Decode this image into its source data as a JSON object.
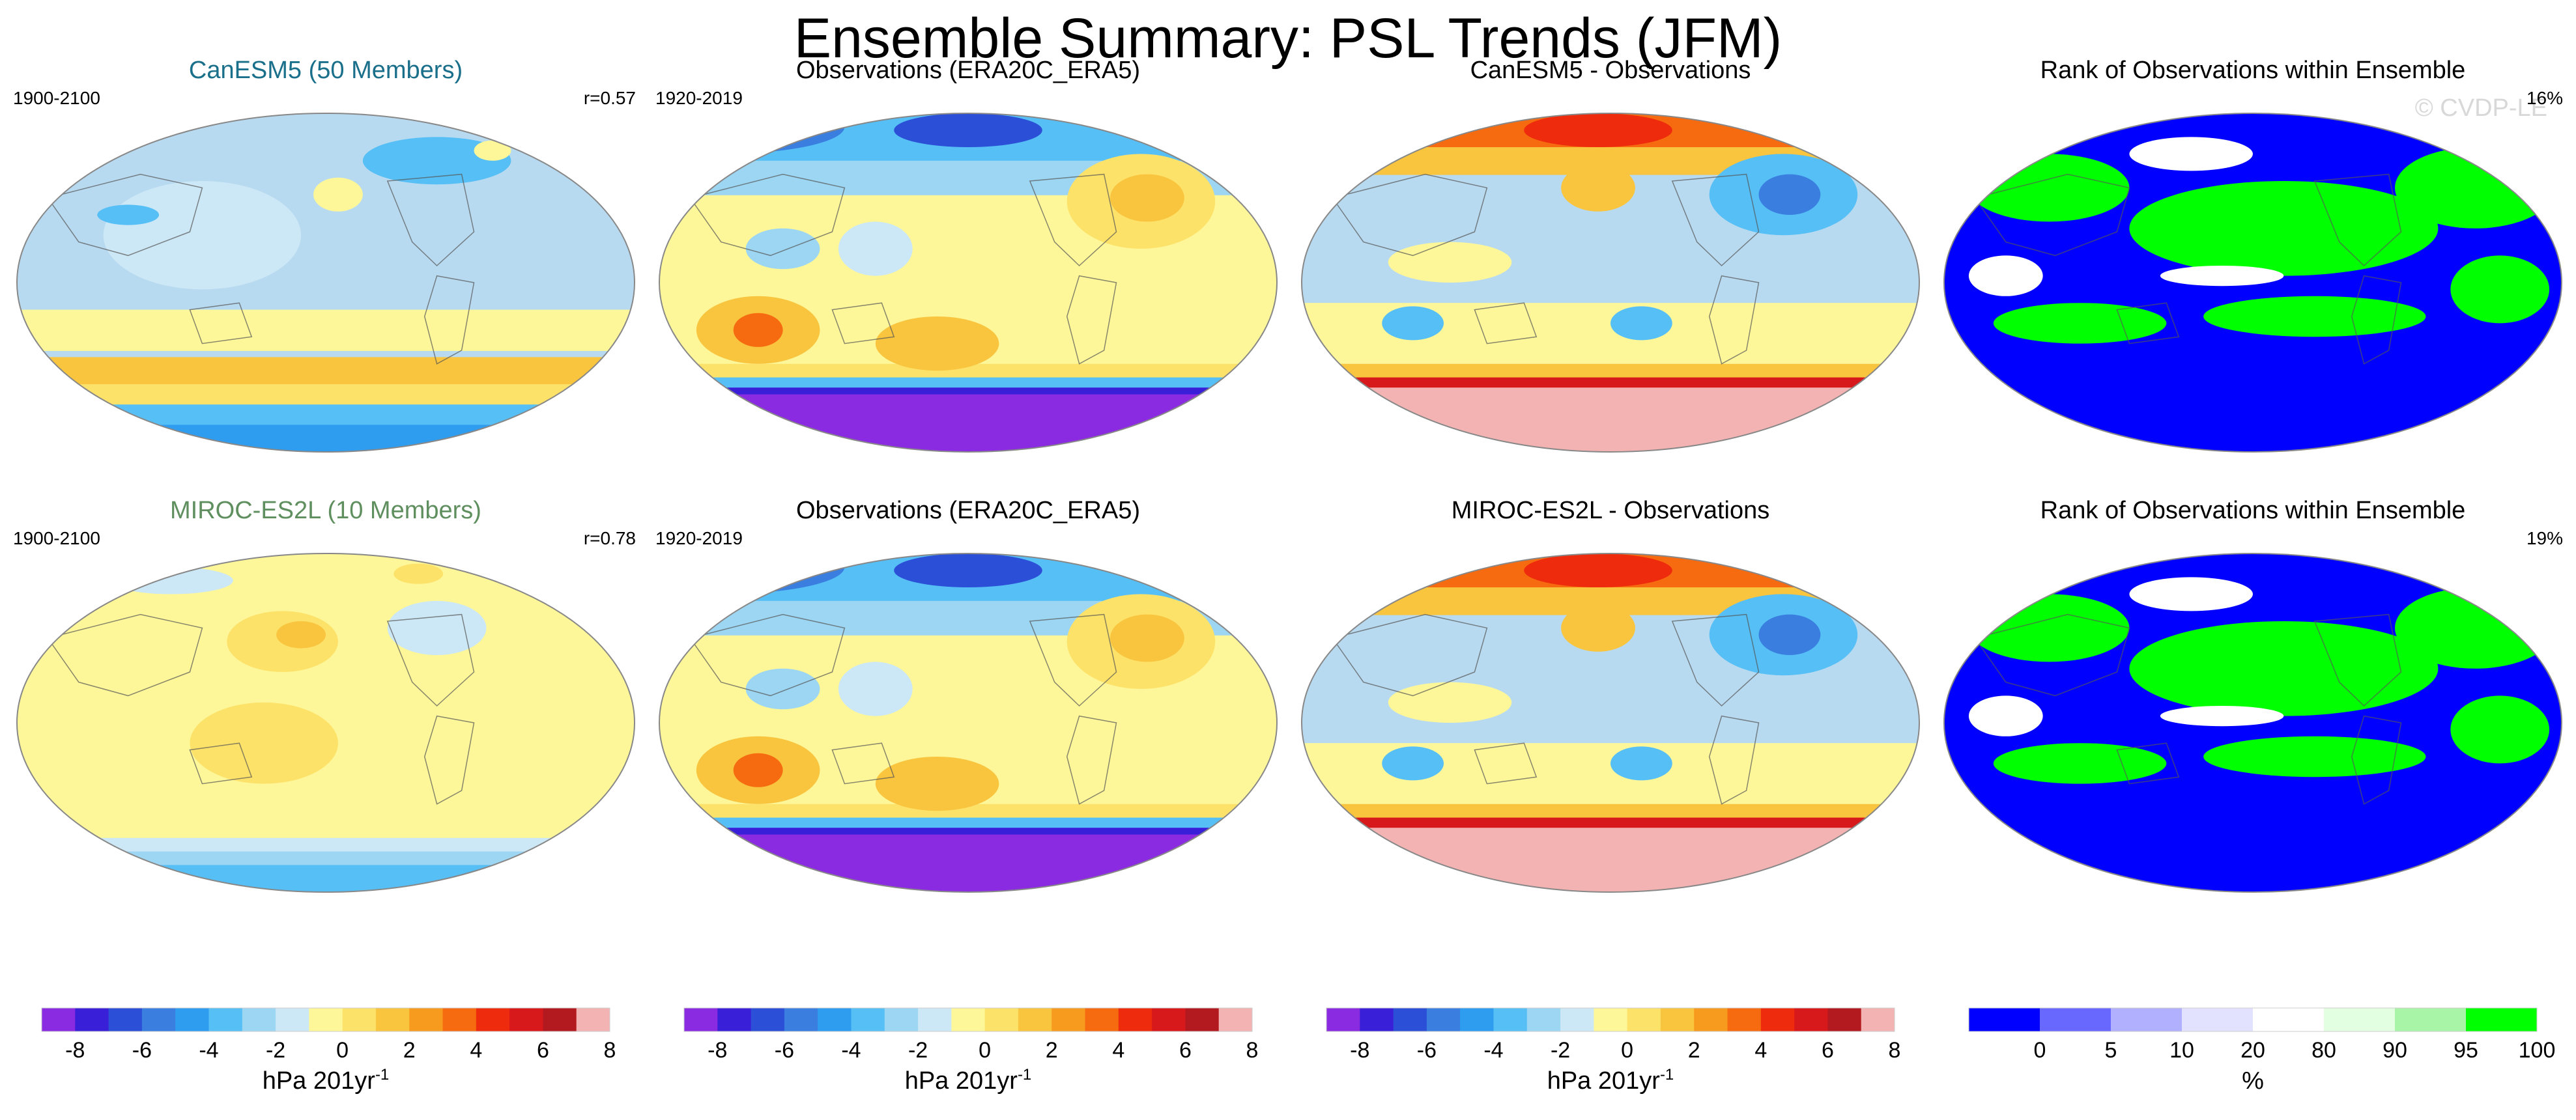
{
  "title": "Ensemble Summary: PSL Trends (JFM)",
  "watermark": "© CVDP-LE",
  "colors": {
    "model1_title": "#1a6f8a",
    "model2_title": "#5f8f5f",
    "ocean_low": "#b8daf0",
    "map_outline": "#888888"
  },
  "chart_data": [
    {
      "type": "heatmap",
      "row": 0,
      "col": 0,
      "panel_title": "CanESM5 (50 Members)",
      "left_label": "1900-2100",
      "right_label": "r=0.57",
      "field": "model",
      "map_style": "model1"
    },
    {
      "type": "heatmap",
      "row": 0,
      "col": 1,
      "panel_title": "Observations (ERA20C_ERA5)",
      "left_label": "1920-2019",
      "right_label": "",
      "field": "observations",
      "map_style": "obs"
    },
    {
      "type": "heatmap",
      "row": 0,
      "col": 2,
      "panel_title": "CanESM5 - Observations",
      "left_label": "",
      "right_label": "",
      "field": "difference",
      "map_style": "diff"
    },
    {
      "type": "heatmap",
      "row": 0,
      "col": 3,
      "panel_title": "Rank of Observations within Ensemble",
      "left_label": "",
      "right_label": "16%",
      "field": "rank",
      "map_style": "rank"
    },
    {
      "type": "heatmap",
      "row": 1,
      "col": 0,
      "panel_title": "MIROC-ES2L (10 Members)",
      "left_label": "1900-2100",
      "right_label": "r=0.78",
      "field": "model",
      "map_style": "model2"
    },
    {
      "type": "heatmap",
      "row": 1,
      "col": 1,
      "panel_title": "Observations (ERA20C_ERA5)",
      "left_label": "1920-2019",
      "right_label": "",
      "field": "observations",
      "map_style": "obs"
    },
    {
      "type": "heatmap",
      "row": 1,
      "col": 2,
      "panel_title": "MIROC-ES2L - Observations",
      "left_label": "",
      "right_label": "",
      "field": "difference",
      "map_style": "diff"
    },
    {
      "type": "heatmap",
      "row": 1,
      "col": 3,
      "panel_title": "Rank of Observations within Ensemble",
      "left_label": "",
      "right_label": "19%",
      "field": "rank",
      "map_style": "rank"
    }
  ],
  "colorbars": [
    {
      "label": "hPa 201yr",
      "label_sup": "-1",
      "ticks": [
        "-8",
        "-6",
        "-4",
        "-2",
        "0",
        "2",
        "4",
        "6",
        "8"
      ],
      "colors": [
        "#8a2be2",
        "#3a1fd8",
        "#2b4fd6",
        "#3a7ee0",
        "#2e9df0",
        "#56bff5",
        "#9dd6f2",
        "#cce7f5",
        "#fdf79a",
        "#fde26a",
        "#f9c43e",
        "#f79b1f",
        "#f66a10",
        "#ee2b0c",
        "#d7191c",
        "#b31a1f",
        "#f4b3b3"
      ]
    },
    {
      "label": "hPa 201yr",
      "label_sup": "-1",
      "ticks": [
        "-8",
        "-6",
        "-4",
        "-2",
        "0",
        "2",
        "4",
        "6",
        "8"
      ],
      "colors": [
        "#8a2be2",
        "#3a1fd8",
        "#2b4fd6",
        "#3a7ee0",
        "#2e9df0",
        "#56bff5",
        "#9dd6f2",
        "#cce7f5",
        "#fdf79a",
        "#fde26a",
        "#f9c43e",
        "#f79b1f",
        "#f66a10",
        "#ee2b0c",
        "#d7191c",
        "#b31a1f",
        "#f4b3b3"
      ]
    },
    {
      "label": "hPa 201yr",
      "label_sup": "-1",
      "ticks": [
        "-8",
        "-6",
        "-4",
        "-2",
        "0",
        "2",
        "4",
        "6",
        "8"
      ],
      "colors": [
        "#8a2be2",
        "#3a1fd8",
        "#2b4fd6",
        "#3a7ee0",
        "#2e9df0",
        "#56bff5",
        "#9dd6f2",
        "#cce7f5",
        "#fdf79a",
        "#fde26a",
        "#f9c43e",
        "#f79b1f",
        "#f66a10",
        "#ee2b0c",
        "#d7191c",
        "#b31a1f",
        "#f4b3b3"
      ]
    },
    {
      "label": "%",
      "label_sup": "",
      "ticks": [
        "0",
        "5",
        "10",
        "20",
        "80",
        "90",
        "95",
        "100"
      ],
      "colors": [
        "#0000ff",
        "#6868ff",
        "#b0b0ff",
        "#e2e2ff",
        "#ffffff",
        "#e2ffe2",
        "#a8f5a8",
        "#00ff00"
      ]
    }
  ]
}
